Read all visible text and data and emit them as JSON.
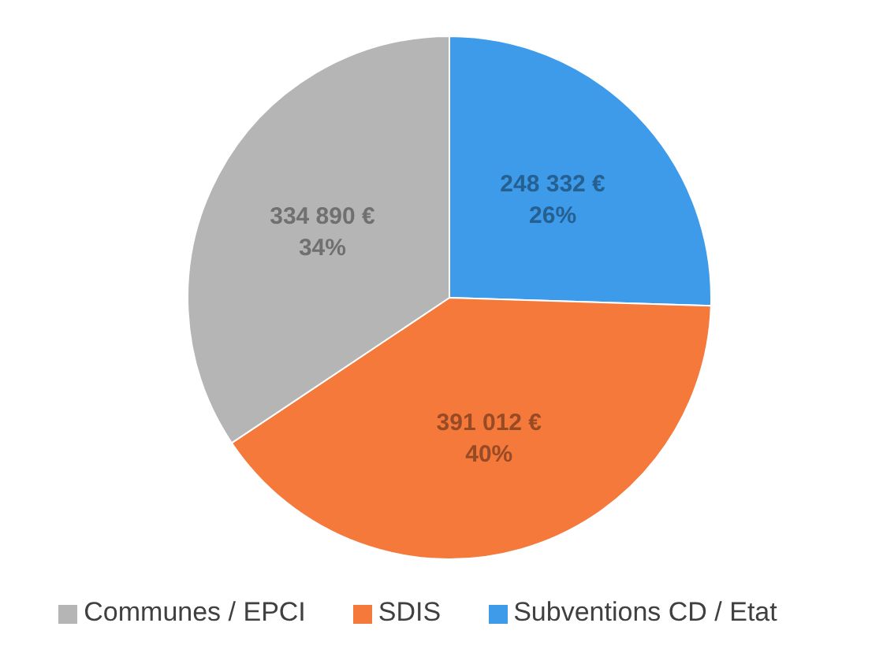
{
  "chart_data": {
    "type": "pie",
    "categories": [
      "Subventions CD / Etat",
      "SDIS",
      "Communes / EPCI"
    ],
    "values": [
      248332,
      391012,
      334890
    ],
    "colors": [
      "#3d9be9",
      "#f4793b",
      "#b5b5b5"
    ],
    "value_labels": [
      "248 332 €\n26%",
      "391 012 €\n40%",
      "334 890 €\n34%"
    ],
    "legend": "bottom"
  }
}
